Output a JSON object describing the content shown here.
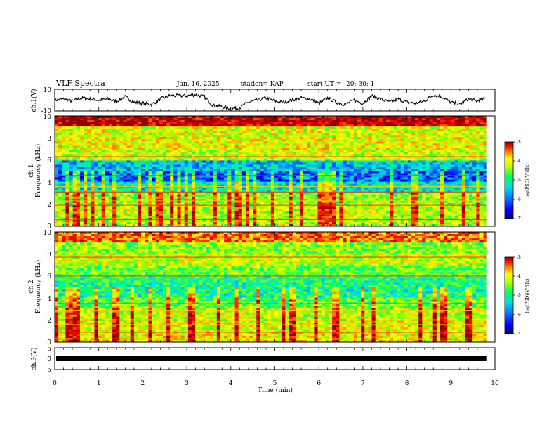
{
  "header": {
    "title": "VLF Spectra",
    "date": "Jan. 16, 2025",
    "station": "station= KAP",
    "start": "start UT =",
    "start_time": "20: 30: 1"
  },
  "colors": {
    "wave": "#000000",
    "bar": "#000000",
    "colormap": [
      "#00007f",
      "#0000ff",
      "#0080ff",
      "#00e5e5",
      "#00ff60",
      "#a0ff00",
      "#ffff00",
      "#ff8000",
      "#ff0000",
      "#8b0000"
    ]
  },
  "chart_data": [
    {
      "type": "line",
      "panel": "ch1-waveform",
      "ylabel": "ch.1(V)",
      "ylim": [
        -10,
        10
      ],
      "yticks": [
        "10",
        "-10"
      ],
      "xlim": [
        0,
        10
      ],
      "x": [
        0,
        0.2,
        0.4,
        0.6,
        0.8,
        1.0,
        1.2,
        1.4,
        1.6,
        1.8,
        2.0,
        2.2,
        2.4,
        2.6,
        2.8,
        3.0,
        3.2,
        3.4,
        3.6,
        3.8,
        4.0,
        4.2,
        4.4,
        4.6,
        4.8,
        5.0,
        5.2,
        5.4,
        5.6,
        5.8,
        6.0,
        6.2,
        6.4,
        6.6,
        6.8,
        7.0,
        7.2,
        7.4,
        7.6,
        7.8,
        8.0,
        8.2,
        8.4,
        8.6,
        8.8,
        9.0,
        9.2,
        9.4,
        9.6,
        9.8
      ],
      "values": [
        0,
        1,
        -1,
        2,
        1,
        0,
        1,
        -1,
        3,
        -2,
        -3,
        -4,
        1,
        4,
        4,
        4,
        5,
        3,
        -5,
        -6,
        -8,
        -7,
        -2,
        0,
        2,
        -1,
        -2,
        0,
        2,
        1,
        -3,
        2,
        -2,
        -4,
        0,
        -3,
        4,
        1,
        -2,
        1,
        -2,
        -3,
        -1,
        5,
        3,
        -2,
        -4,
        1,
        -1,
        2
      ]
    },
    {
      "type": "heatmap",
      "panel": "ch1-spectrogram",
      "ylabel": "ch.1",
      "ylabel2": "Frequency (kHz)",
      "ylim": [
        0,
        10
      ],
      "xlim": [
        0,
        10
      ],
      "yticks": [
        "0",
        "2",
        "4",
        "6",
        "8",
        "10"
      ],
      "freq_khz": [
        0.5,
        1.5,
        2.5,
        3.5,
        4.5,
        5.5,
        6.5,
        7.5,
        8.5,
        9.5
      ],
      "log_psd_by_band": [
        -3.2,
        -4.5,
        -4.4,
        -4.6,
        -5.8,
        -6.2,
        -5.6,
        -4.8,
        -4.6,
        -4.7
      ],
      "line_bands_khz": [
        0.3,
        0.6,
        1.1,
        1.9,
        2.3,
        3.1,
        3.6,
        4.6,
        5.2,
        6.3,
        7.7
      ],
      "cbar_label": "log(PSD)(V²/Hz)",
      "cbar_range": [
        -7,
        -3
      ],
      "cbar_ticks": [
        "-3",
        "-4",
        "-5",
        "-6",
        "-7"
      ]
    },
    {
      "type": "heatmap",
      "panel": "ch2-spectrogram",
      "ylabel": "ch.2",
      "ylabel2": "Frequency (kHz)",
      "ylim": [
        0,
        10
      ],
      "xlim": [
        0,
        10
      ],
      "yticks": [
        "0",
        "2",
        "4",
        "6",
        "8",
        "10"
      ],
      "freq_khz": [
        0.5,
        1.5,
        2.5,
        3.5,
        4.5,
        5.5,
        6.5,
        7.5,
        8.5,
        9.5
      ],
      "log_psd_by_band": [
        -3.8,
        -4.8,
        -4.6,
        -4.9,
        -5.3,
        -5.4,
        -5.0,
        -4.6,
        -4.5,
        -4.4
      ],
      "line_bands_khz": [
        0.3,
        0.9,
        1.6,
        2.0,
        2.9,
        3.5,
        4.8,
        6.0,
        6.4,
        7.7
      ],
      "cbar_label": "log(PSD)(V²/Hz)",
      "cbar_range": [
        -7,
        -3
      ],
      "cbar_ticks": [
        "-3",
        "-4",
        "-5",
        "-6",
        "-7"
      ]
    },
    {
      "type": "line",
      "panel": "ch3-waveform",
      "ylabel": "ch.3(V)",
      "ylim": [
        -5,
        5
      ],
      "yticks": [
        "5",
        "0",
        "-5"
      ],
      "xlim": [
        0,
        10
      ],
      "constant_value": 0,
      "xlabel": "Time  (min)",
      "xticks": [
        "0",
        "1",
        "2",
        "3",
        "4",
        "5",
        "6",
        "7",
        "8",
        "9",
        "10"
      ]
    }
  ]
}
